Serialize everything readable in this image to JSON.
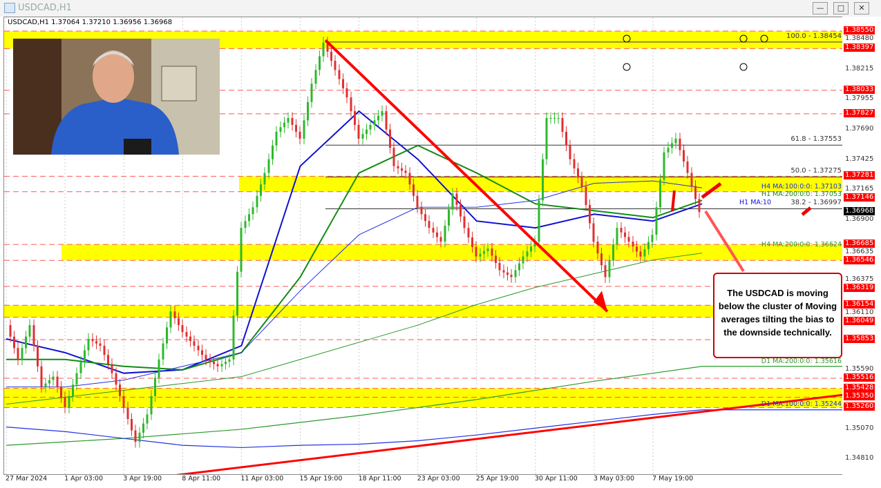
{
  "window": {
    "title": "USDCAD,H1",
    "buttons": [
      "—",
      "□",
      "✕"
    ]
  },
  "header": {
    "info": "USDCAD,H1  1.37064 1.37210 1.36956 1.36968"
  },
  "annotation": {
    "text": "The USDCAD is moving below the cluster of Moving averages tilting the bias to the downside technically."
  },
  "chart_data": {
    "type": "candlestick",
    "symbol": "USDCAD",
    "timeframe": "H1",
    "ohlc_last": {
      "open": 1.37064,
      "high": 1.3721,
      "low": 1.36956,
      "close": 1.36968
    },
    "x_tick_labels": [
      "27 Mar 2024",
      "1 Apr 03:00",
      "3 Apr 19:00",
      "8 Apr 11:00",
      "11 Apr 03:00",
      "15 Apr 19:00",
      "18 Apr 11:00",
      "23 Apr 03:00",
      "25 Apr 19:00",
      "30 Apr 11:00",
      "3 May 03:00",
      "7 May 19:00"
    ],
    "ylim": [
      1.3467,
      1.3866
    ],
    "y_tick_labels": [
      "1.38480",
      "1.38215",
      "1.37955",
      "1.37690",
      "1.37425",
      "1.37165",
      "1.36900",
      "1.36635",
      "1.36375",
      "1.36110",
      "1.35590",
      "1.35070",
      "1.34810"
    ],
    "price_path_approx": [
      1.3598,
      1.3568,
      1.3598,
      1.3544,
      1.3553,
      1.3526,
      1.3556,
      1.3586,
      1.358,
      1.3556,
      1.3526,
      1.3496,
      1.352,
      1.3568,
      1.361,
      1.3592,
      1.358,
      1.3568,
      1.3562,
      1.3568,
      1.3683,
      1.3701,
      1.3731,
      1.3767,
      1.3779,
      1.3761,
      1.3809,
      1.3845,
      1.3821,
      1.3797,
      1.3761,
      1.3773,
      1.3785,
      1.3737,
      1.3731,
      1.3701,
      1.3683,
      1.3671,
      1.3713,
      1.3683,
      1.3658,
      1.3665,
      1.3646,
      1.364,
      1.3658,
      1.3671,
      1.3779,
      1.3779,
      1.3743,
      1.3719,
      1.3671,
      1.364,
      1.3683,
      1.3671,
      1.3658,
      1.3677,
      1.3749,
      1.3761,
      1.3731,
      1.36968
    ],
    "moving_averages": [
      {
        "name": "H1 MA:100",
        "color": "#1010d0",
        "values": [
          1.3586,
          1.3574,
          1.3556,
          1.3559,
          1.358,
          1.3737,
          1.3785,
          1.3743,
          1.3689,
          1.3683,
          1.3695,
          1.3689,
          1.3704
        ]
      },
      {
        "name": "H1 MA:200",
        "color": "#138a13",
        "values": [
          1.3568,
          1.3568,
          1.3562,
          1.3559,
          1.3574,
          1.364,
          1.3731,
          1.3755,
          1.3731,
          1.3704,
          1.3698,
          1.3692,
          1.3707
        ]
      },
      {
        "name": "H4 MA:100:0:0: 1.37103",
        "color": "#2030e0",
        "values": [
          1.3544,
          1.3544,
          1.355,
          1.3562,
          1.3574,
          1.3628,
          1.3677,
          1.3701,
          1.3701,
          1.3707,
          1.3722,
          1.3724,
          1.3718
        ]
      },
      {
        "name": "H4 MA:200:0:0: 1.36624",
        "color": "#2a9a2a",
        "values": [
          1.3529,
          1.3535,
          1.3541,
          1.3547,
          1.3553,
          1.3568,
          1.3583,
          1.3598,
          1.3616,
          1.3631,
          1.3643,
          1.3655,
          1.3661
        ]
      },
      {
        "name": "D1 MA:200:0:0: 1.35616",
        "color": "#2a9a2a",
        "values": [
          1.3493,
          1.3496,
          1.3499,
          1.3503,
          1.3507,
          1.3513,
          1.3519,
          1.3526,
          1.3533,
          1.3541,
          1.3549,
          1.3556,
          1.3562
        ]
      },
      {
        "name": "D1 MA:100:0:0: 1.35244",
        "color": "#2030e0",
        "values": [
          1.3509,
          1.3505,
          1.3499,
          1.3493,
          1.3491,
          1.3493,
          1.3494,
          1.3497,
          1.3502,
          1.3508,
          1.3514,
          1.352,
          1.3524
        ]
      }
    ],
    "ma_labels": {
      "h4_100": "H4 MA:100:0:0: 1.37103",
      "h1_200": "H1 MA:200:0:0: 1.37053",
      "h1_100": "H1 MA:10",
      "h4_200": "H4 MA:200:0:0: 1.36624",
      "d1_200": "D1 MA:200:0:0: 1.35616",
      "d1_100": "D1 MA:100:0:0: 1.35244"
    },
    "fibonacci": [
      {
        "label": "100.0 - 1.38454",
        "price": 1.38454
      },
      {
        "label": "61.8 - 1.37553",
        "price": 1.37553
      },
      {
        "label": "50.0 - 1.37275",
        "price": 1.37275
      },
      {
        "label": "38.2 - 1.36997",
        "price": 1.36997
      }
    ],
    "red_levels": [
      "1.38550",
      "1.38397",
      "1.38033",
      "1.37827",
      "1.37281",
      "1.37146",
      "1.36685",
      "1.36546",
      "1.36319",
      "1.36154",
      "1.36049",
      "1.35853",
      "1.35516",
      "1.35428",
      "1.35350",
      "1.35260"
    ],
    "yellow_zones": [
      [
        1.38397,
        1.3855
      ],
      [
        1.37146,
        1.37281
      ],
      [
        1.36546,
        1.36685
      ],
      [
        1.36049,
        1.36154
      ],
      [
        1.3526,
        1.35428
      ]
    ],
    "current_price": "1.36968",
    "trendlines": [
      {
        "from": 1.3847,
        "to": 1.361,
        "color": "#f00000"
      },
      {
        "from": 1.3467,
        "to": 1.3537,
        "color": "#f00000"
      }
    ]
  },
  "colors": {
    "bull": "#2db82d",
    "bear": "#e03030",
    "zone": "#ffff00",
    "level": "#ff0000"
  }
}
